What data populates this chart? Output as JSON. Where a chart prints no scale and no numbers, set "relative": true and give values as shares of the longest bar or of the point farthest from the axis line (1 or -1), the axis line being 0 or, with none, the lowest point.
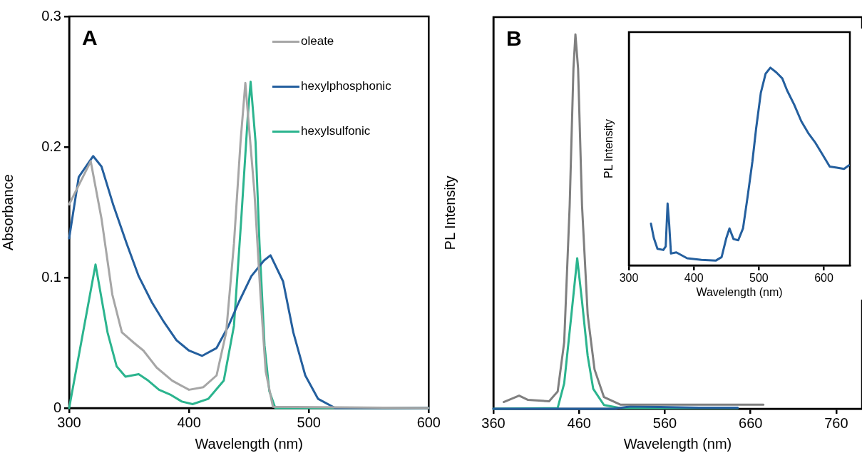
{
  "chart_data": [
    {
      "type": "line",
      "xlabel": "Wavelength (nm)",
      "ylabel": "Absorbance",
      "annotations": [
        "A"
      ],
      "xlim": [
        300,
        600
      ],
      "xticks": [
        300,
        400,
        500,
        600
      ],
      "ylim": [
        0,
        0.3
      ],
      "yticks": [
        0,
        0.1,
        0.2,
        0.3
      ],
      "grid": false,
      "legend": "top right",
      "marker": "none",
      "line_style": "solid",
      "series": [
        {
          "name": "oleate",
          "color": "#a6a6a6",
          "x": [
            300,
            318,
            327,
            336,
            344,
            354,
            362,
            373,
            386,
            400,
            412,
            423,
            431,
            437.5,
            443,
            447,
            454.6,
            459.6,
            464,
            470,
            600
          ],
          "values": [
            0.156,
            0.189,
            0.145,
            0.087,
            0.058,
            0.05,
            0.044,
            0.031,
            0.021,
            0.014,
            0.016,
            0.025,
            0.058,
            0.126,
            0.204,
            0.249,
            0.165,
            0.087,
            0.028,
            0.001,
            0
          ]
        },
        {
          "name": "hexylphosphonic",
          "color": "#245f9e",
          "x": [
            300,
            308,
            320,
            327,
            337,
            348,
            358,
            369,
            379,
            389.5,
            400,
            411,
            423,
            433,
            441.5,
            452,
            462.5,
            468,
            478.5,
            487,
            497,
            507.7,
            522,
            600
          ],
          "values": [
            0.13,
            0.177,
            0.193,
            0.185,
            0.155,
            0.126,
            0.101,
            0.081,
            0.066,
            0.052,
            0.044,
            0.04,
            0.046,
            0.063,
            0.081,
            0.101,
            0.113,
            0.117,
            0.097,
            0.058,
            0.025,
            0.007,
            0,
            0
          ]
        },
        {
          "name": "hexylsulfonic",
          "color": "#2bb48e",
          "x": [
            300,
            322,
            332,
            339.6,
            347,
            358,
            366,
            375,
            385,
            394,
            403,
            416,
            429,
            437.5,
            443.6,
            449,
            451.4,
            455.5,
            458.8,
            463,
            467,
            472,
            600
          ],
          "values": [
            0,
            0.11,
            0.058,
            0.032,
            0.024,
            0.026,
            0.021,
            0.014,
            0.01,
            0.005,
            0.003,
            0.007,
            0.021,
            0.063,
            0.145,
            0.223,
            0.25,
            0.204,
            0.126,
            0.048,
            0.013,
            0,
            0
          ]
        }
      ]
    },
    {
      "type": "line",
      "relative": true,
      "xlabel": "Wavelength (nm)",
      "ylabel": "PL Intensity",
      "annotations": [
        "B"
      ],
      "xlim": [
        360,
        790
      ],
      "xticks": [
        360,
        460,
        560,
        660,
        760
      ],
      "tick_labels": "x",
      "grid": false,
      "marker": "none",
      "line_style": "solid",
      "series": [
        {
          "color": "#7f7f7f",
          "x": [
            372,
            390,
            400,
            425,
            435,
            442.6,
            449,
            453.4,
            455.7,
            458.8,
            463.4,
            470,
            478,
            489,
            508,
            675
          ],
          "values": [
            0.018,
            0.035,
            0.024,
            0.02,
            0.046,
            0.178,
            0.543,
            0.909,
            1,
            0.909,
            0.543,
            0.251,
            0.105,
            0.031,
            0.011,
            0.011
          ]
        },
        {
          "color": "#245f9e",
          "x": [
            360,
            500,
            520,
            600,
            645
          ],
          "values": [
            0,
            0,
            0.006,
            0.003,
            0.003
          ]
        },
        {
          "color": "#2bb48e",
          "x": [
            360,
            435,
            442.6,
            451,
            457.8,
            463.4,
            470,
            476.5,
            489,
            508,
            645
          ],
          "values": [
            0,
            0.002,
            0.068,
            0.251,
            0.402,
            0.287,
            0.141,
            0.053,
            0.01,
            0.002,
            0.002
          ]
        }
      ]
    },
    {
      "type": "line",
      "relative": true,
      "xlabel": "Wavelength (nm)",
      "ylabel": "PL Intensity",
      "xlim": [
        300,
        640
      ],
      "xticks": [
        300,
        400,
        500,
        600
      ],
      "tick_labels": "x",
      "grid": false,
      "marker": "none",
      "line_style": "solid",
      "series": [
        {
          "color": "#245f9e",
          "x": [
            334,
            338.4,
            344,
            353,
            356.7,
            359.6,
            362,
            364.8,
            373,
            389.6,
            411.6,
            433.6,
            442.7,
            450,
            454.8,
            461,
            468.3,
            475.6,
            483,
            490,
            495.8,
            503,
            510.4,
            517.7,
            526.9,
            536,
            543.3,
            554.3,
            565.3,
            576,
            587,
            598,
            609,
            620,
            631,
            638.5
          ],
          "values": [
            0.211,
            0.139,
            0.084,
            0.078,
            0.096,
            0.313,
            0.211,
            0.06,
            0.066,
            0.036,
            0.028,
            0.024,
            0.042,
            0.139,
            0.187,
            0.133,
            0.127,
            0.187,
            0.355,
            0.524,
            0.693,
            0.873,
            0.97,
            1,
            0.976,
            0.946,
            0.886,
            0.813,
            0.729,
            0.669,
            0.62,
            0.56,
            0.5,
            0.494,
            0.488,
            0.506
          ]
        }
      ]
    }
  ]
}
